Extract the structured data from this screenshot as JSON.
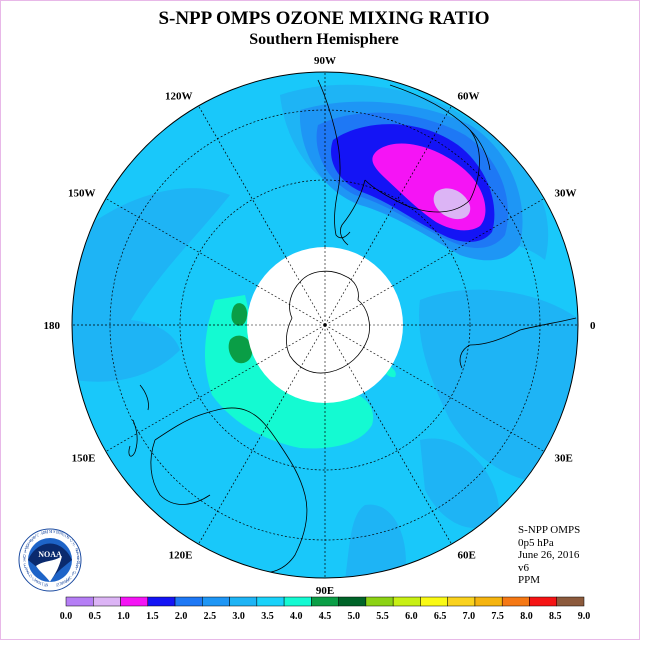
{
  "header": {
    "title": "S-NPP OMPS OZONE MIXING RATIO",
    "subtitle": "Southern Hemisphere"
  },
  "info": {
    "instrument": "S-NPP OMPS",
    "level": "0p5 hPa",
    "date": "June 26, 2016",
    "version": "v6",
    "units": "PPM"
  },
  "map": {
    "projection": "south-polar-stereographic",
    "longitude_labels": [
      {
        "label": "90W",
        "lon": -90
      },
      {
        "label": "60W",
        "lon": -60
      },
      {
        "label": "30W",
        "lon": -30
      },
      {
        "label": "0",
        "lon": 0
      },
      {
        "label": "30E",
        "lon": 30
      },
      {
        "label": "60E",
        "lon": 60
      },
      {
        "label": "90E",
        "lon": 90
      },
      {
        "label": "120E",
        "lon": 120
      },
      {
        "label": "150E",
        "lon": 150
      },
      {
        "label": "180",
        "lon": 180
      },
      {
        "label": "150W",
        "lon": -150
      },
      {
        "label": "120W",
        "lon": -120
      }
    ],
    "background_color": "#19c8fa",
    "no_data_center_color": "#ffffff"
  },
  "colorbar": {
    "levels": [
      "0.0",
      "0.5",
      "1.0",
      "1.5",
      "2.0",
      "2.5",
      "3.0",
      "3.5",
      "4.0",
      "4.5",
      "5.0",
      "5.5",
      "6.0",
      "6.5",
      "7.0",
      "7.5",
      "8.0",
      "8.5",
      "9.0"
    ],
    "colors": [
      "#b57ef5",
      "#dcb4f5",
      "#f514f5",
      "#1414f5",
      "#1e78f5",
      "#1e96f5",
      "#1eb4f5",
      "#19d2fa",
      "#14fad2",
      "#0a9e46",
      "#006428",
      "#8cd214",
      "#c8f014",
      "#fafa14",
      "#fad21e",
      "#f5b40f",
      "#f57814",
      "#f51414",
      "#8c5a3c"
    ]
  },
  "logo": {
    "text": "NOAA",
    "ring_text": "NATIONAL OCEANIC AND ATMOSPHERIC ADMINISTRATION U.S. DEPARTMENT OF COMMERCE"
  }
}
